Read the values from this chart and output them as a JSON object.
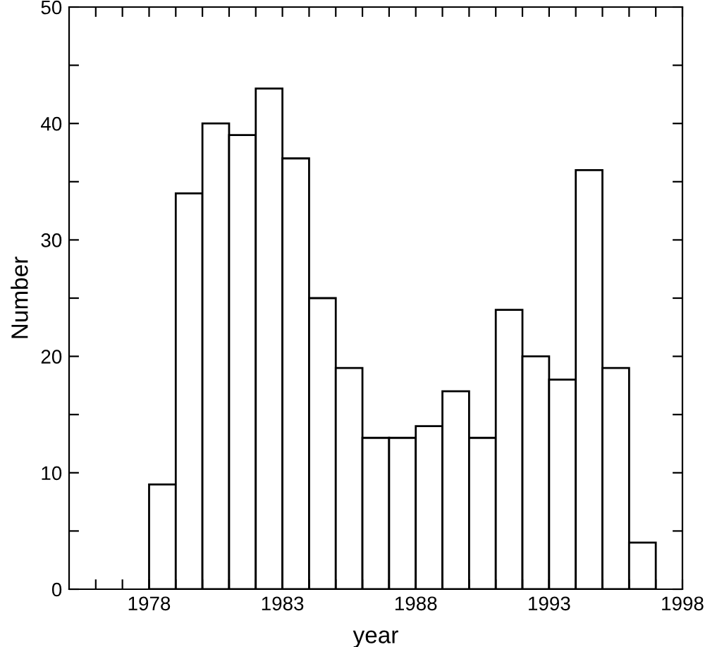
{
  "chart_data": {
    "type": "histogram",
    "xlabel": "year",
    "ylabel": "Number",
    "bins": [
      1978,
      1979,
      1980,
      1981,
      1982,
      1983,
      1984,
      1985,
      1986,
      1987,
      1988,
      1989,
      1990,
      1991,
      1992,
      1993,
      1994,
      1995,
      1996,
      1997
    ],
    "values": [
      9,
      34,
      40,
      39,
      43,
      37,
      25,
      19,
      13,
      13,
      14,
      17,
      13,
      24,
      20,
      18,
      36,
      19,
      4
    ],
    "color": "#ffffff",
    "xlim": [
      1975,
      1998
    ],
    "xticks": [
      {
        "value": 1976,
        "label": null
      },
      {
        "value": 1977,
        "label": null
      },
      1978,
      {
        "value": 1979,
        "label": null
      },
      {
        "value": 1980,
        "label": null
      },
      {
        "value": 1981,
        "label": null
      },
      {
        "value": 1982,
        "label": null
      },
      1983,
      {
        "value": 1984,
        "label": null
      },
      {
        "value": 1985,
        "label": null
      },
      {
        "value": 1986,
        "label": null
      },
      {
        "value": 1987,
        "label": null
      },
      1988,
      {
        "value": 1989,
        "label": null
      },
      {
        "value": 1990,
        "label": null
      },
      {
        "value": 1991,
        "label": null
      },
      {
        "value": 1992,
        "label": null
      },
      1993,
      {
        "value": 1994,
        "label": null
      },
      {
        "value": 1995,
        "label": null
      },
      {
        "value": 1996,
        "label": null
      },
      {
        "value": 1997,
        "label": null
      },
      1998
    ],
    "ylim": [
      0,
      50
    ],
    "yticks": [
      0,
      {
        "value": 5,
        "label": null
      },
      10,
      {
        "value": 15,
        "label": null
      },
      20,
      {
        "value": 25,
        "label": null
      },
      30,
      {
        "value": 35,
        "label": null
      },
      40,
      {
        "value": 45,
        "label": null
      },
      50
    ],
    "grid": false,
    "legend": false
  }
}
